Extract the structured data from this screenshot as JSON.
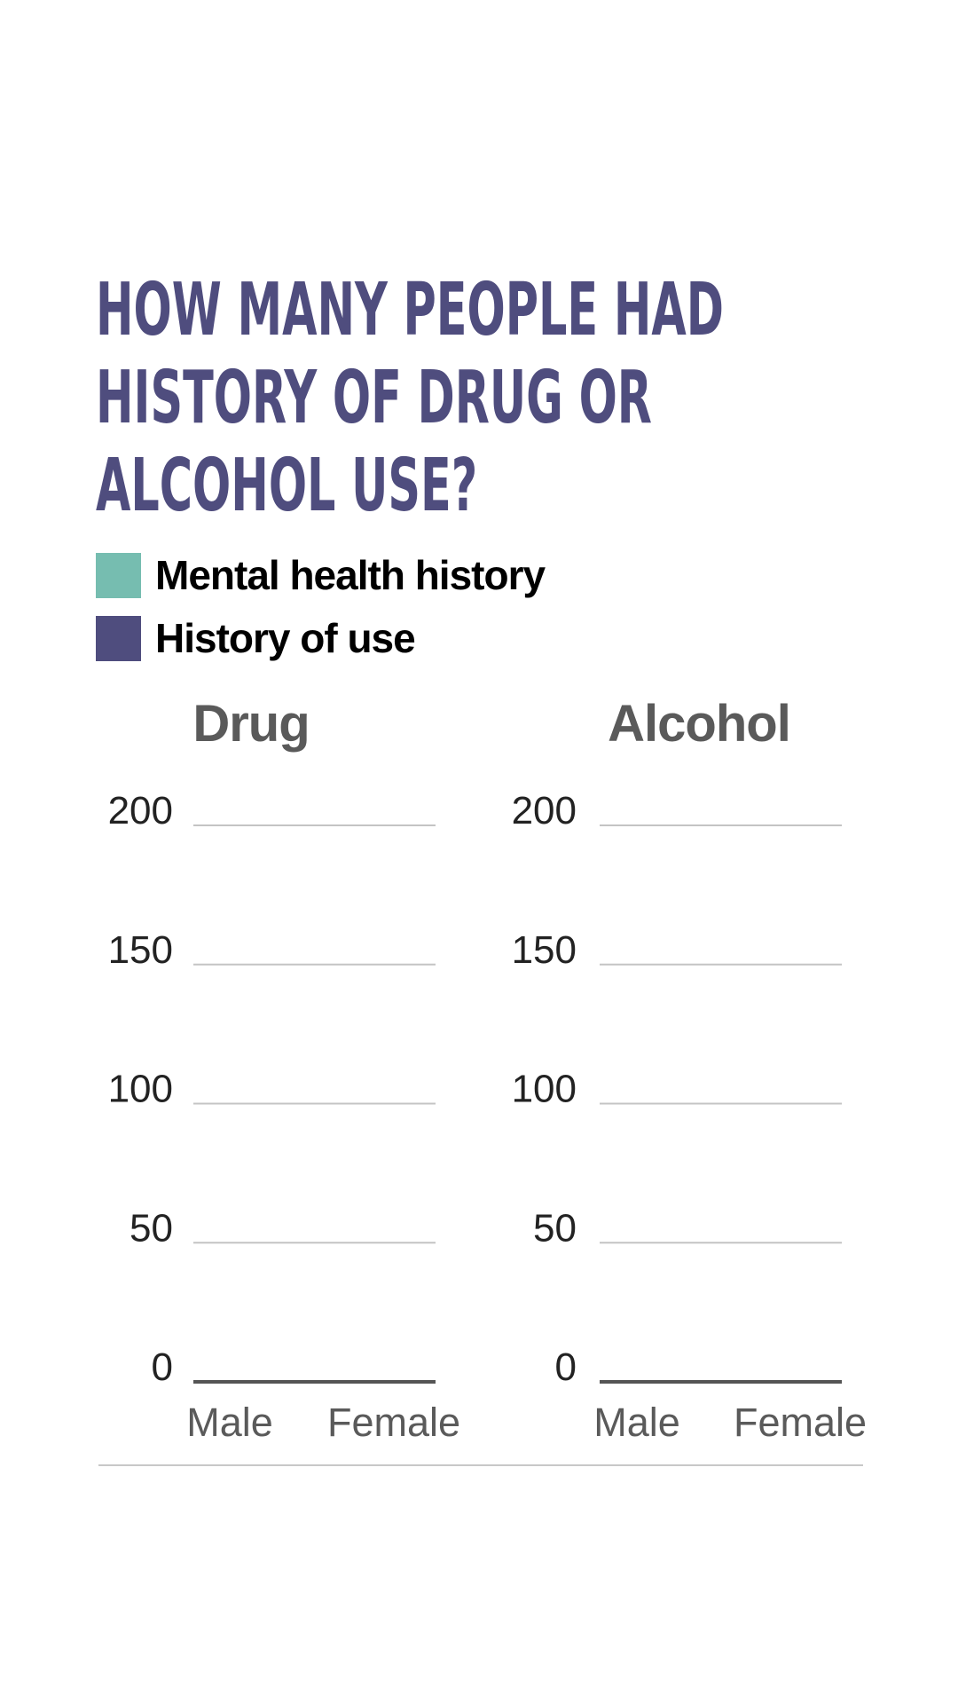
{
  "title_lines": [
    "How many people had",
    "history of drug or",
    "alcohol use?"
  ],
  "legend": [
    {
      "label": "Mental health history",
      "color": "#76bdb0"
    },
    {
      "label": "History of use",
      "color": "#4f4d7e"
    }
  ],
  "chart_data": [
    {
      "type": "bar",
      "title": "Drug",
      "categories": [
        "Male",
        "Female"
      ],
      "series": [
        {
          "name": "Mental health history",
          "values": [
            0,
            0
          ]
        },
        {
          "name": "History of use",
          "values": [
            0,
            0
          ]
        }
      ],
      "yticks": [
        200,
        150,
        100,
        50,
        0
      ],
      "ylim": [
        0,
        200
      ],
      "grid": true
    },
    {
      "type": "bar",
      "title": "Alcohol",
      "categories": [
        "Male",
        "Female"
      ],
      "series": [
        {
          "name": "Mental health history",
          "values": [
            0,
            0
          ]
        },
        {
          "name": "History of use",
          "values": [
            0,
            0
          ]
        }
      ],
      "yticks": [
        200,
        150,
        100,
        50,
        0
      ],
      "ylim": [
        0,
        200
      ],
      "grid": true
    }
  ]
}
